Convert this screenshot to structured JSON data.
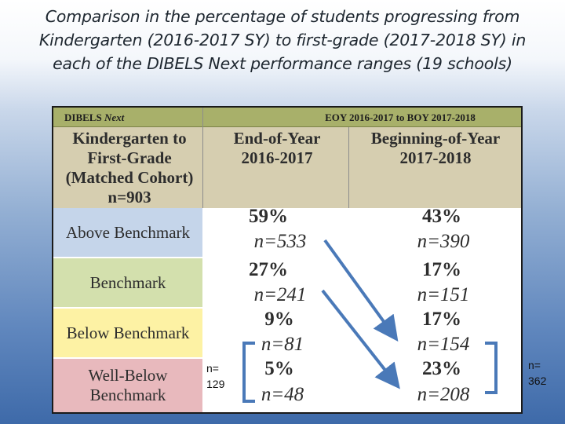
{
  "slide": {
    "title_lines": [
      "Comparison in the percentage of students progressing from",
      "Kindergarten (2016-2017 SY) to first-grade (2017-2018 SY) in",
      "each of the DIBELS Next performance ranges (19 schools)"
    ]
  },
  "table": {
    "strip_left_plain": "DIBELS ",
    "strip_left_italic": "Next",
    "strip_right": "EOY 2016-2017 to BOY 2017-2018",
    "cohort_label_lines": [
      "Kindergarten to",
      "First-Grade",
      "(Matched Cohort)",
      "n=903"
    ],
    "col_eoy_lines": [
      "End-of-Year",
      "2016-2017"
    ],
    "col_boy_lines": [
      "Beginning-of-Year",
      "2017-2018"
    ],
    "rows": [
      {
        "label_lines": [
          "Above Benchmark"
        ],
        "eoy_pct": "59%",
        "eoy_n": "n=533",
        "boy_pct": "43%",
        "boy_n": "n=390",
        "color": "#c5d5ea"
      },
      {
        "label_lines": [
          "Benchmark"
        ],
        "eoy_pct": "27%",
        "eoy_n": "n=241",
        "boy_pct": "17%",
        "boy_n": "n=151",
        "color": "#d3e0ad"
      },
      {
        "label_lines": [
          "Below Benchmark"
        ],
        "eoy_pct": "9%",
        "eoy_n": "n=81",
        "boy_pct": "17%",
        "boy_n": "n=154",
        "color": "#fdf2a4"
      },
      {
        "label_lines": [
          "Well-Below",
          "Benchmark"
        ],
        "eoy_pct": "5%",
        "eoy_n": "n=48",
        "boy_pct": "23%",
        "boy_n": "n=208",
        "color": "#e8b9bd"
      }
    ]
  },
  "annotations": {
    "left_n_lines": [
      "n=",
      "129"
    ],
    "right_n_lines": [
      "n=",
      "362"
    ],
    "arrow_color": "#4a79b8"
  }
}
